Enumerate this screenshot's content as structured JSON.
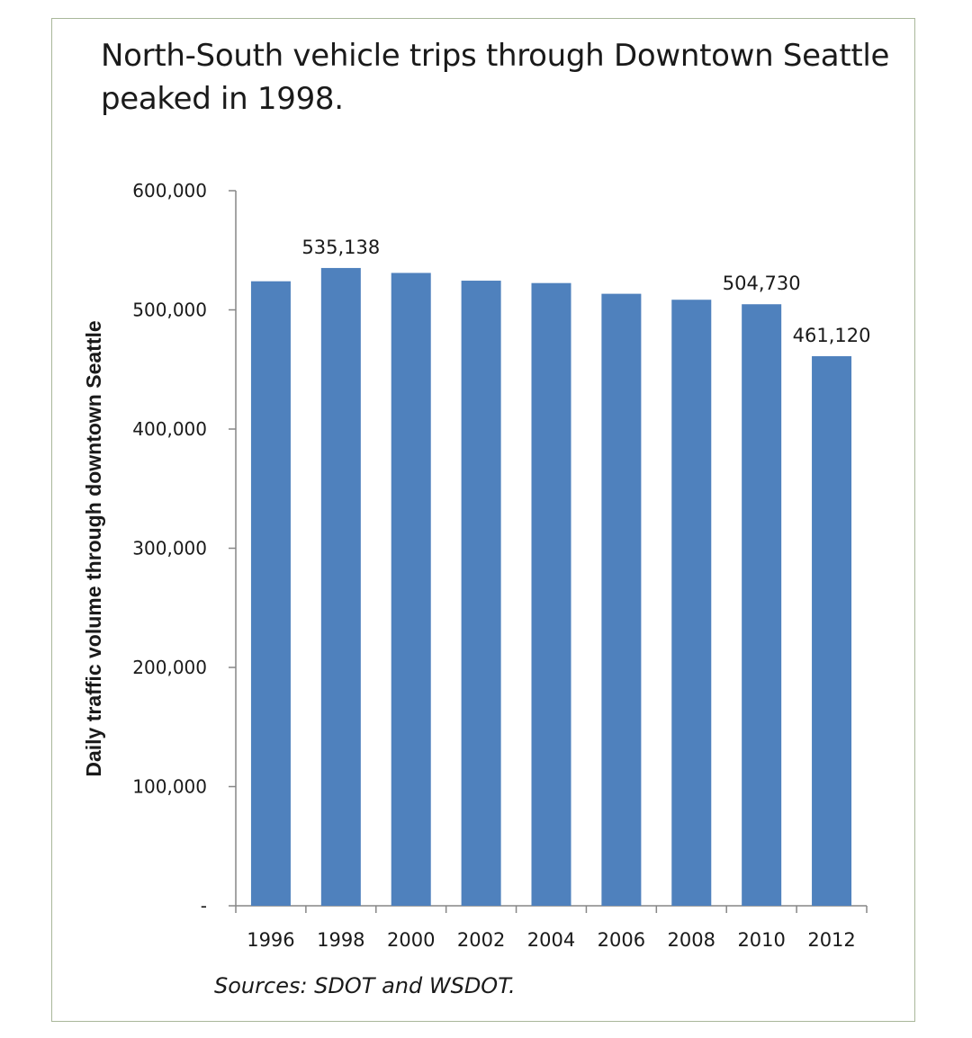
{
  "chart_data": {
    "type": "bar",
    "title_lines": [
      "North-South vehicle trips through Downtown Seattle",
      "peaked in  1998."
    ],
    "ylabel": "Daily traffic volume through downtown Seattle",
    "xlabel": "",
    "categories": [
      "1996",
      "1998",
      "2000",
      "2002",
      "2004",
      "2006",
      "2008",
      "2010",
      "2012"
    ],
    "values": [
      524000,
      535138,
      531000,
      524500,
      522500,
      513500,
      508500,
      504730,
      461120
    ],
    "data_labels": [
      {
        "index": 1,
        "text": "535,138"
      },
      {
        "index": 7,
        "text": "504,730"
      },
      {
        "index": 8,
        "text": "461,120"
      }
    ],
    "ylim": [
      0,
      600000
    ],
    "y_ticks": [
      {
        "value": 0,
        "label": "-"
      },
      {
        "value": 100000,
        "label": "100,000"
      },
      {
        "value": 200000,
        "label": "200,000"
      },
      {
        "value": 300000,
        "label": "300,000"
      },
      {
        "value": 400000,
        "label": "400,000"
      },
      {
        "value": 500000,
        "label": "500,000"
      },
      {
        "value": 600000,
        "label": "600,000"
      }
    ],
    "grid": false,
    "legend": "none",
    "bar_color": "#4f81bd",
    "source": "Sources:  SDOT and WSDOT."
  }
}
